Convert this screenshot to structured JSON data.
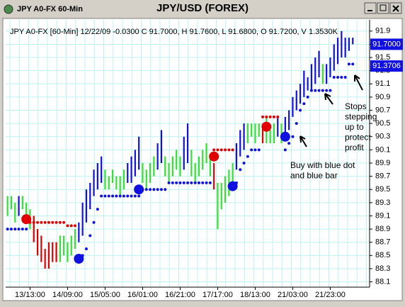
{
  "chart_data": {
    "type": "hilo",
    "window_title": "JPY A0-FX 60-Min",
    "title": "JPY/USD (FOREX)",
    "info": "JPY A0-FX [60-Min] 12/22/09 -0.0300 C 91.7000, H 91.7600, L 91.6800, O 91.7200, V 1.3530K",
    "annotations": [
      [
        "Stops",
        "stepping",
        "up to",
        "protect",
        "profit"
      ],
      [
        "Buy with blue dot",
        "and blue bar"
      ]
    ],
    "categories": [
      null,
      null,
      null,
      null,
      null,
      null,
      "13/13:00",
      null,
      null,
      null,
      null,
      null,
      null,
      null,
      null,
      null,
      "14/09:00",
      null,
      null,
      null,
      null,
      null,
      null,
      null,
      null,
      null,
      "15/05:00",
      null,
      null,
      null,
      null,
      null,
      null,
      null,
      null,
      null,
      "16/01:00",
      null,
      null,
      null,
      null,
      null,
      null,
      null,
      null,
      null,
      "16/21:00",
      null,
      null,
      null,
      null,
      null,
      null,
      null,
      null,
      null,
      "17/17:00",
      null,
      null,
      null,
      null,
      null,
      null,
      null,
      null,
      null,
      "18/13:00",
      null,
      null,
      null,
      null,
      null,
      null,
      null,
      null,
      null,
      "21/03:00",
      null,
      null,
      null,
      null,
      null,
      null,
      null,
      null,
      null,
      "21/23:00",
      null,
      null,
      null,
      null,
      null,
      null
    ],
    "high": [
      89.4,
      89.4,
      89.3,
      89.4,
      89.4,
      89.3,
      89.2,
      89.1,
      88.9,
      88.8,
      88.6,
      88.7,
      88.7,
      88.7,
      88.8,
      88.8,
      88.7,
      88.8,
      88.9,
      89.0,
      89.3,
      89.5,
      89.6,
      89.8,
      89.9,
      90.0,
      89.8,
      89.7,
      89.8,
      89.7,
      89.7,
      89.8,
      89.9,
      90.0,
      90.1,
      90.3,
      89.9,
      89.8,
      89.9,
      90.0,
      90.2,
      90.4,
      90.0,
      89.9,
      90.0,
      90.1,
      90.0,
      90.3,
      90.5,
      90.1,
      89.9,
      90.0,
      90.1,
      90.2,
      90.0,
      89.9,
      89.6,
      89.6,
      89.7,
      89.8,
      89.9,
      90.2,
      90.4,
      90.5,
      90.5,
      90.5,
      90.5,
      90.5,
      90.5,
      90.6,
      90.4,
      90.5,
      90.6,
      90.5,
      90.6,
      90.7,
      90.9,
      91.0,
      91.1,
      91.3,
      91.2,
      91.4,
      91.5,
      91.6,
      91.4,
      91.4,
      91.5,
      91.7,
      91.8,
      91.9,
      91.8,
      91.8,
      91.8
    ],
    "low": [
      89.1,
      89.2,
      89.0,
      89.1,
      89.2,
      89.0,
      88.9,
      88.7,
      88.5,
      88.4,
      88.3,
      88.3,
      88.4,
      88.4,
      88.4,
      88.5,
      88.4,
      88.5,
      88.6,
      88.7,
      88.8,
      89.0,
      89.2,
      89.4,
      89.5,
      89.6,
      89.5,
      89.5,
      89.6,
      89.5,
      89.4,
      89.5,
      89.6,
      89.6,
      89.7,
      89.8,
      89.6,
      89.5,
      89.6,
      89.7,
      89.8,
      89.9,
      89.7,
      89.6,
      89.7,
      89.8,
      89.7,
      89.8,
      89.9,
      89.7,
      89.6,
      89.7,
      89.8,
      89.9,
      89.7,
      89.5,
      88.9,
      89.2,
      89.3,
      89.4,
      89.5,
      89.8,
      90.0,
      90.1,
      90.2,
      90.3,
      90.2,
      90.3,
      90.2,
      90.2,
      90.2,
      90.2,
      90.3,
      90.2,
      90.3,
      90.4,
      90.6,
      90.7,
      90.8,
      90.9,
      91.0,
      91.0,
      91.1,
      91.2,
      91.1,
      91.1,
      91.2,
      91.3,
      91.4,
      91.5,
      91.5,
      91.6,
      91.7
    ],
    "bar_colors": [
      "#33e033",
      "#33e033",
      "#33e033",
      "#1010e0",
      "#33e033",
      "#33e033",
      "#33e033",
      "#e00000",
      "#e00000",
      "#e00000",
      "#e00000",
      "#e00000",
      "#e00000",
      "#e00000",
      "#33e033",
      "#33e033",
      "#33e033",
      "#33e033",
      "#33e033",
      "#1010e0",
      "#1010e0",
      "#1010e0",
      "#1010e0",
      "#1010e0",
      "#1010e0",
      "#1010e0",
      "#33e033",
      "#33e033",
      "#33e033",
      "#33e033",
      "#33e033",
      "#33e033",
      "#1010e0",
      "#1010e0",
      "#1010e0",
      "#1010e0",
      "#33e033",
      "#33e033",
      "#33e033",
      "#33e033",
      "#1010e0",
      "#1010e0",
      "#33e033",
      "#33e033",
      "#33e033",
      "#33e033",
      "#33e033",
      "#1010e0",
      "#1010e0",
      "#33e033",
      "#33e033",
      "#33e033",
      "#33e033",
      "#33e033",
      "#33e033",
      "#e00000",
      "#33e033",
      "#33e033",
      "#33e033",
      "#33e033",
      "#33e033",
      "#1010e0",
      "#1010e0",
      "#1010e0",
      "#33e033",
      "#33e033",
      "#33e033",
      "#33e033",
      "#e00000",
      "#33e033",
      "#33e033",
      "#33e033",
      "#1010e0",
      "#33e033",
      "#1010e0",
      "#1010e0",
      "#1010e0",
      "#1010e0",
      "#1010e0",
      "#1010e0",
      "#1010e0",
      "#1010e0",
      "#1010e0",
      "#1010e0",
      "#33e033",
      "#1010e0",
      "#1010e0",
      "#1010e0",
      "#1010e0",
      "#1010e0",
      "#1010e0",
      "#1010e0",
      "#1010e0"
    ],
    "stop_series": [
      {
        "color": "#1010e0",
        "values": [
          88.9,
          88.9,
          88.9,
          88.9,
          88.9,
          88.9,
          null,
          null,
          null,
          null,
          null,
          null,
          null,
          null,
          null,
          null,
          null,
          null,
          null,
          88.4,
          88.5,
          88.6,
          88.8,
          89.0,
          89.2,
          89.4,
          89.4,
          89.4,
          89.4,
          89.4,
          89.4,
          89.4,
          89.4,
          89.4,
          89.4,
          89.4,
          89.5,
          89.5,
          89.5,
          89.5,
          89.5,
          89.5,
          89.5,
          89.6,
          89.6,
          89.6,
          89.6,
          89.6,
          89.6,
          89.6,
          89.6,
          89.6,
          89.6,
          89.6,
          89.6,
          null,
          null,
          null,
          null,
          null,
          null,
          89.6,
          89.8,
          89.9,
          90.0,
          90.1,
          90.1,
          90.1,
          null,
          null,
          null,
          null,
          null,
          null,
          90.1,
          90.2,
          90.3,
          90.5,
          90.7,
          90.8,
          90.9,
          91.0,
          91.0,
          91.0,
          91.0,
          91.0,
          91.0,
          91.2,
          91.2,
          91.2,
          91.2,
          91.4,
          91.4
        ]
      },
      {
        "color": "#e00000",
        "values": [
          null,
          null,
          null,
          null,
          null,
          null,
          89.0,
          89.0,
          89.0,
          89.0,
          89.0,
          89.0,
          89.0,
          89.0,
          89.0,
          89.0,
          88.95,
          88.95,
          88.95,
          null,
          null,
          null,
          null,
          null,
          null,
          null,
          null,
          null,
          null,
          null,
          null,
          null,
          null,
          null,
          null,
          null,
          null,
          null,
          null,
          null,
          null,
          null,
          null,
          null,
          null,
          null,
          null,
          null,
          null,
          null,
          null,
          null,
          null,
          null,
          null,
          90.1,
          90.1,
          90.1,
          90.1,
          90.1,
          90.1,
          null,
          null,
          null,
          null,
          null,
          null,
          null,
          90.6,
          90.6,
          90.6,
          90.6,
          90.6,
          null,
          null,
          null,
          null,
          null,
          null,
          null,
          null,
          null,
          null,
          null,
          null,
          null,
          null,
          null,
          null,
          null,
          null,
          null,
          null
        ]
      }
    ],
    "signals": [
      {
        "x": 5,
        "y": 89.05,
        "color": "#e00000"
      },
      {
        "x": 19,
        "y": 88.45,
        "color": "#1010e0"
      },
      {
        "x": 35,
        "y": 89.5,
        "color": "#1010e0"
      },
      {
        "x": 55,
        "y": 90.0,
        "color": "#e00000"
      },
      {
        "x": 60,
        "y": 89.55,
        "color": "#1010e0"
      },
      {
        "x": 69,
        "y": 90.45,
        "color": "#e00000"
      },
      {
        "x": 74,
        "y": 90.3,
        "color": "#1010e0"
      }
    ],
    "price_tags": [
      {
        "value": 91.7,
        "label": "91.7000"
      },
      {
        "value": 91.3706,
        "label": "91.3706"
      }
    ],
    "price_tag_color": "#1010e0",
    "ylim": [
      88.02,
      92.07
    ],
    "yticks": [
      88.1,
      88.3,
      88.5,
      88.7,
      88.9,
      89.1,
      89.3,
      89.5,
      89.7,
      89.9,
      90.1,
      90.3,
      90.5,
      90.7,
      90.9,
      91.1,
      91.3,
      91.5,
      91.7,
      91.9
    ],
    "grid": true
  }
}
